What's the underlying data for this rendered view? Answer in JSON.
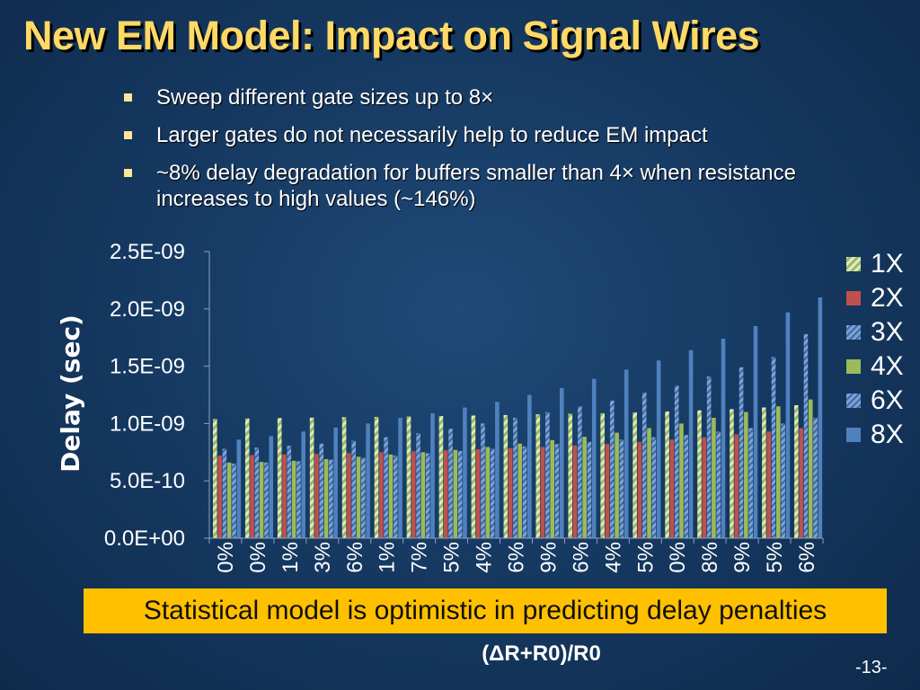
{
  "slide": {
    "title": "New EM Model: Impact on Signal Wires",
    "bullets": [
      "Sweep different gate sizes up to 8×",
      "Larger gates do not necessarily help to reduce EM impact",
      "~8% delay degradation for buffers smaller than 4× when resistance increases to high values (~146%)"
    ],
    "callout": "Statistical model is optimistic in predicting delay penalties",
    "page_number": "-13-"
  },
  "colors": {
    "title": "#ffd966",
    "callout_bg": "#ffc000",
    "series": [
      "#9bbb59",
      "#c0504d",
      "#4f81bd",
      "#9bbb59",
      "#4f81bd",
      "#4f81bd"
    ]
  },
  "chart_data": {
    "type": "bar",
    "title": "",
    "ylabel": "Delay (sec)",
    "xlabel": "(ΔR+R0)/R0",
    "ylim": [
      0,
      2.5e-09
    ],
    "yticks": [
      "0.0E+00",
      "5.0E-10",
      "1.0E-09",
      "1.5E-09",
      "2.0E-09",
      "2.5E-09"
    ],
    "categories": [
      "0%",
      "0%",
      "1%",
      "3%",
      "6%",
      "1%",
      "7%",
      "5%",
      "4%",
      "6%",
      "9%",
      "6%",
      "4%",
      "5%",
      "0%",
      "8%",
      "9%",
      "5%",
      "6%"
    ],
    "legend": [
      "1X",
      "2X",
      "3X",
      "4X",
      "6X",
      "8X"
    ],
    "series": [
      {
        "name": "1X",
        "values": [
          1.04e-09,
          1.045e-09,
          1.048e-09,
          1.051e-09,
          1.055e-09,
          1.058e-09,
          1.062e-09,
          1.066e-09,
          1.07e-09,
          1.074e-09,
          1.08e-09,
          1.085e-09,
          1.09e-09,
          1.097e-09,
          1.105e-09,
          1.115e-09,
          1.125e-09,
          1.14e-09,
          1.16e-09
        ]
      },
      {
        "name": "2X",
        "values": [
          7.2e-10,
          7.25e-10,
          7.3e-10,
          7.35e-10,
          7.42e-10,
          7.5e-10,
          7.58e-10,
          7.66e-10,
          7.75e-10,
          7.85e-10,
          7.95e-10,
          8.08e-10,
          8.22e-10,
          8.4e-10,
          8.6e-10,
          8.8e-10,
          9.05e-10,
          9.3e-10,
          9.6e-10
        ]
      },
      {
        "name": "3X",
        "values": [
          7.8e-10,
          7.9e-10,
          8.05e-10,
          8.25e-10,
          8.5e-10,
          8.8e-10,
          9.15e-10,
          9.55e-10,
          1e-09,
          1.05e-09,
          1.1e-09,
          1.15e-09,
          1.2e-09,
          1.27e-09,
          1.33e-09,
          1.41e-09,
          1.49e-09,
          1.58e-09,
          1.78e-09
        ]
      },
      {
        "name": "4X",
        "values": [
          6.6e-10,
          6.65e-10,
          6.75e-10,
          6.9e-10,
          7.1e-10,
          7.3e-10,
          7.5e-10,
          7.7e-10,
          7.95e-10,
          8.25e-10,
          8.55e-10,
          8.85e-10,
          9.2e-10,
          9.6e-10,
          1e-09,
          1.05e-09,
          1.1e-09,
          1.15e-09,
          1.21e-09
        ]
      },
      {
        "name": "6X",
        "values": [
          6.5e-10,
          6.6e-10,
          6.7e-10,
          6.85e-10,
          7e-10,
          7.2e-10,
          7.4e-10,
          7.6e-10,
          7.8e-10,
          8e-10,
          8.2e-10,
          8.4e-10,
          8.6e-10,
          8.8e-10,
          9e-10,
          9.3e-10,
          9.6e-10,
          1e-09,
          1.05e-09
        ]
      },
      {
        "name": "8X",
        "values": [
          8.6e-10,
          8.9e-10,
          9.3e-10,
          9.65e-10,
          1e-09,
          1.05e-09,
          1.09e-09,
          1.14e-09,
          1.19e-09,
          1.25e-09,
          1.31e-09,
          1.39e-09,
          1.47e-09,
          1.55e-09,
          1.64e-09,
          1.74e-09,
          1.85e-09,
          1.97e-09,
          2.1e-09
        ]
      }
    ]
  }
}
